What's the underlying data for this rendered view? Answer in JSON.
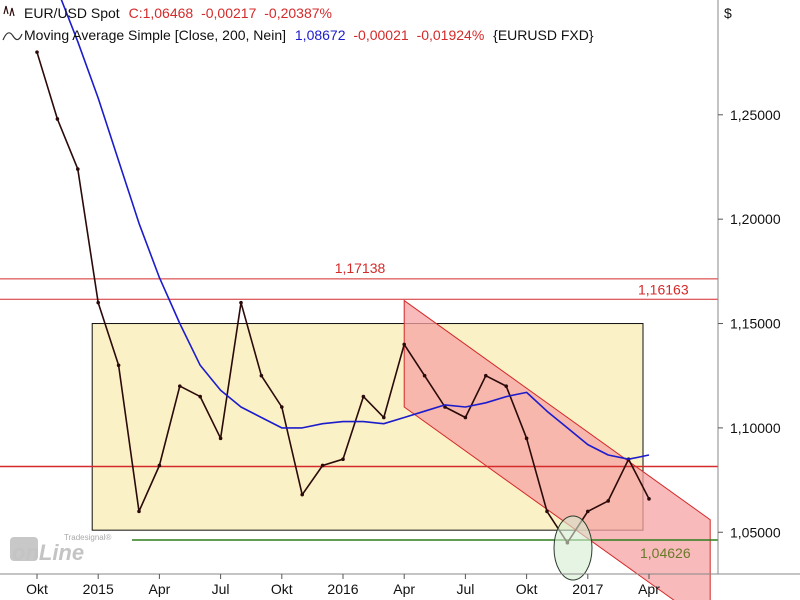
{
  "legend": {
    "line1_symbol": "EUR/USD Spot",
    "line1_close": "C:1,06468",
    "line1_change": "-0,00217",
    "line1_pct": "-0,20387%",
    "line2_name": "Moving Average Simple [Close, 200, Nein]",
    "line2_value": "1,08672",
    "line2_change": "-0,00021",
    "line2_pct": "-0,01924%",
    "line2_source": "{EURUSD FXD}"
  },
  "logo": {
    "small": "Tradesignal®",
    "big": "onLine"
  },
  "colors": {
    "price": "#2b0a0a",
    "ma": "#1c1ccc",
    "red_line": "#d42a2a",
    "support": "#2e7d1e",
    "range_box": "#fbf1c6",
    "channel": "#f6a3a3"
  },
  "chart_data": {
    "type": "line",
    "title": "",
    "currency": "$",
    "y_ticks": [
      "1,25000",
      "1,20000",
      "1,15000",
      "1,10000",
      "1,05000"
    ],
    "y_tick_values": [
      1.25,
      1.2,
      1.15,
      1.1,
      1.05
    ],
    "ylim": [
      1.03,
      1.305
    ],
    "x_ticks": [
      "Okt",
      "2015",
      "Apr",
      "Jul",
      "Okt",
      "2016",
      "Apr",
      "Jul",
      "Okt",
      "2017",
      "Apr"
    ],
    "x_tick_dates": [
      "2014-10",
      "2015-01",
      "2015-04",
      "2015-07",
      "2015-10",
      "2016-01",
      "2016-04",
      "2016-07",
      "2016-10",
      "2017-01",
      "2017-04"
    ],
    "levels": [
      {
        "label": "1,17138",
        "value": 1.17138
      },
      {
        "label": "1,16163",
        "value": 1.16163
      },
      {
        "label": "",
        "value": 1.0815
      },
      {
        "label": "1,04626",
        "value": 1.04626
      }
    ],
    "range_box": {
      "start": "2015-01",
      "end": "2017-04",
      "top": 1.15,
      "bottom": 1.051
    },
    "channel": {
      "start": "2016-04",
      "end": "2017-07",
      "upper_start": 1.161,
      "upper_end": 1.056,
      "lower_start": 1.11,
      "lower_end": 1.005
    },
    "series": [
      {
        "name": "EUR/USD Spot",
        "x": [
          "2014-10",
          "2014-11",
          "2014-12",
          "2015-01",
          "2015-02",
          "2015-03",
          "2015-04",
          "2015-05",
          "2015-06",
          "2015-07",
          "2015-08",
          "2015-09",
          "2015-10",
          "2015-11",
          "2015-12",
          "2016-01",
          "2016-02",
          "2016-03",
          "2016-04",
          "2016-05",
          "2016-06",
          "2016-07",
          "2016-08",
          "2016-09",
          "2016-10",
          "2016-11",
          "2016-12",
          "2017-01",
          "2017-02",
          "2017-03",
          "2017-04"
        ],
        "values": [
          1.28,
          1.248,
          1.224,
          1.16,
          1.13,
          1.06,
          1.082,
          1.12,
          1.115,
          1.095,
          1.16,
          1.125,
          1.11,
          1.068,
          1.082,
          1.085,
          1.115,
          1.105,
          1.14,
          1.125,
          1.11,
          1.105,
          1.125,
          1.12,
          1.095,
          1.06,
          1.045,
          1.06,
          1.065,
          1.085,
          1.066
        ]
      },
      {
        "name": "Moving Average Simple [Close, 200, Nein]",
        "x": [
          "2014-10",
          "2014-11",
          "2014-12",
          "2015-01",
          "2015-02",
          "2015-03",
          "2015-04",
          "2015-05",
          "2015-06",
          "2015-07",
          "2015-08",
          "2015-09",
          "2015-10",
          "2015-11",
          "2015-12",
          "2016-01",
          "2016-02",
          "2016-03",
          "2016-04",
          "2016-05",
          "2016-06",
          "2016-07",
          "2016-08",
          "2016-09",
          "2016-10",
          "2016-11",
          "2016-12",
          "2017-01",
          "2017-02",
          "2017-03",
          "2017-04"
        ],
        "values": [
          1.335,
          1.31,
          1.285,
          1.258,
          1.228,
          1.198,
          1.172,
          1.15,
          1.13,
          1.118,
          1.11,
          1.105,
          1.1,
          1.1,
          1.102,
          1.103,
          1.103,
          1.102,
          1.105,
          1.108,
          1.111,
          1.11,
          1.112,
          1.115,
          1.117,
          1.108,
          1.1,
          1.092,
          1.087,
          1.085,
          1.087
        ]
      }
    ]
  }
}
